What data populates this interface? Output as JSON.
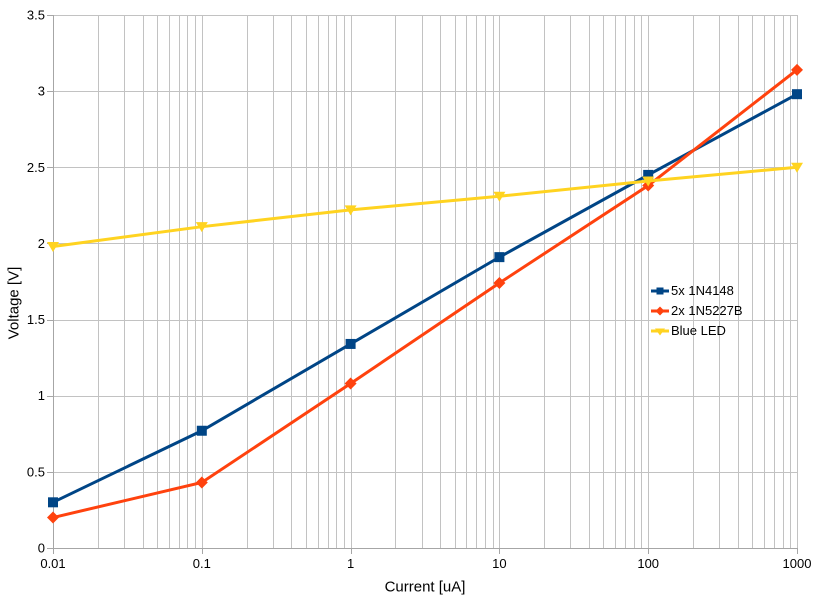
{
  "chart_data": {
    "type": "line",
    "x_scale": "log",
    "x": [
      0.01,
      0.1,
      1,
      10,
      100,
      1000
    ],
    "series": [
      {
        "name": "5x 1N4148",
        "color": "#004586",
        "marker": "square",
        "values": [
          0.3,
          0.77,
          1.34,
          1.91,
          2.45,
          2.98
        ]
      },
      {
        "name": "2x 1N5227B",
        "color": "#FF420E",
        "marker": "diamond",
        "values": [
          0.2,
          0.43,
          1.08,
          1.74,
          2.38,
          3.14
        ]
      },
      {
        "name": "Blue LED",
        "color": "#FFD320",
        "marker": "triangle-down",
        "values": [
          1.98,
          2.11,
          2.22,
          2.31,
          2.41,
          2.5
        ]
      }
    ],
    "xlabel": "Current [uA]",
    "ylabel": "Voltage [V]",
    "xlim": [
      0.01,
      1000
    ],
    "ylim": [
      0,
      3.5
    ],
    "xticks": [
      0.01,
      0.1,
      1,
      10,
      100,
      1000
    ],
    "xtick_labels": [
      "0.01",
      "0.1",
      "1",
      "10",
      "100",
      "1000"
    ],
    "yticks": [
      0,
      0.5,
      1,
      1.5,
      2,
      2.5,
      3,
      3.5
    ],
    "ytick_labels": [
      "0",
      "0.5",
      "1",
      "1.5",
      "2",
      "2.5",
      "3",
      "3.5"
    ],
    "grid": {
      "y_major": true,
      "x_major": true,
      "x_log_minor": true
    },
    "legend_position": "inside-right",
    "colors": {
      "background": "#FFFFFF",
      "gridline": "#C2C2C2",
      "axis": "#A6A6A6",
      "text": "#000000"
    }
  }
}
